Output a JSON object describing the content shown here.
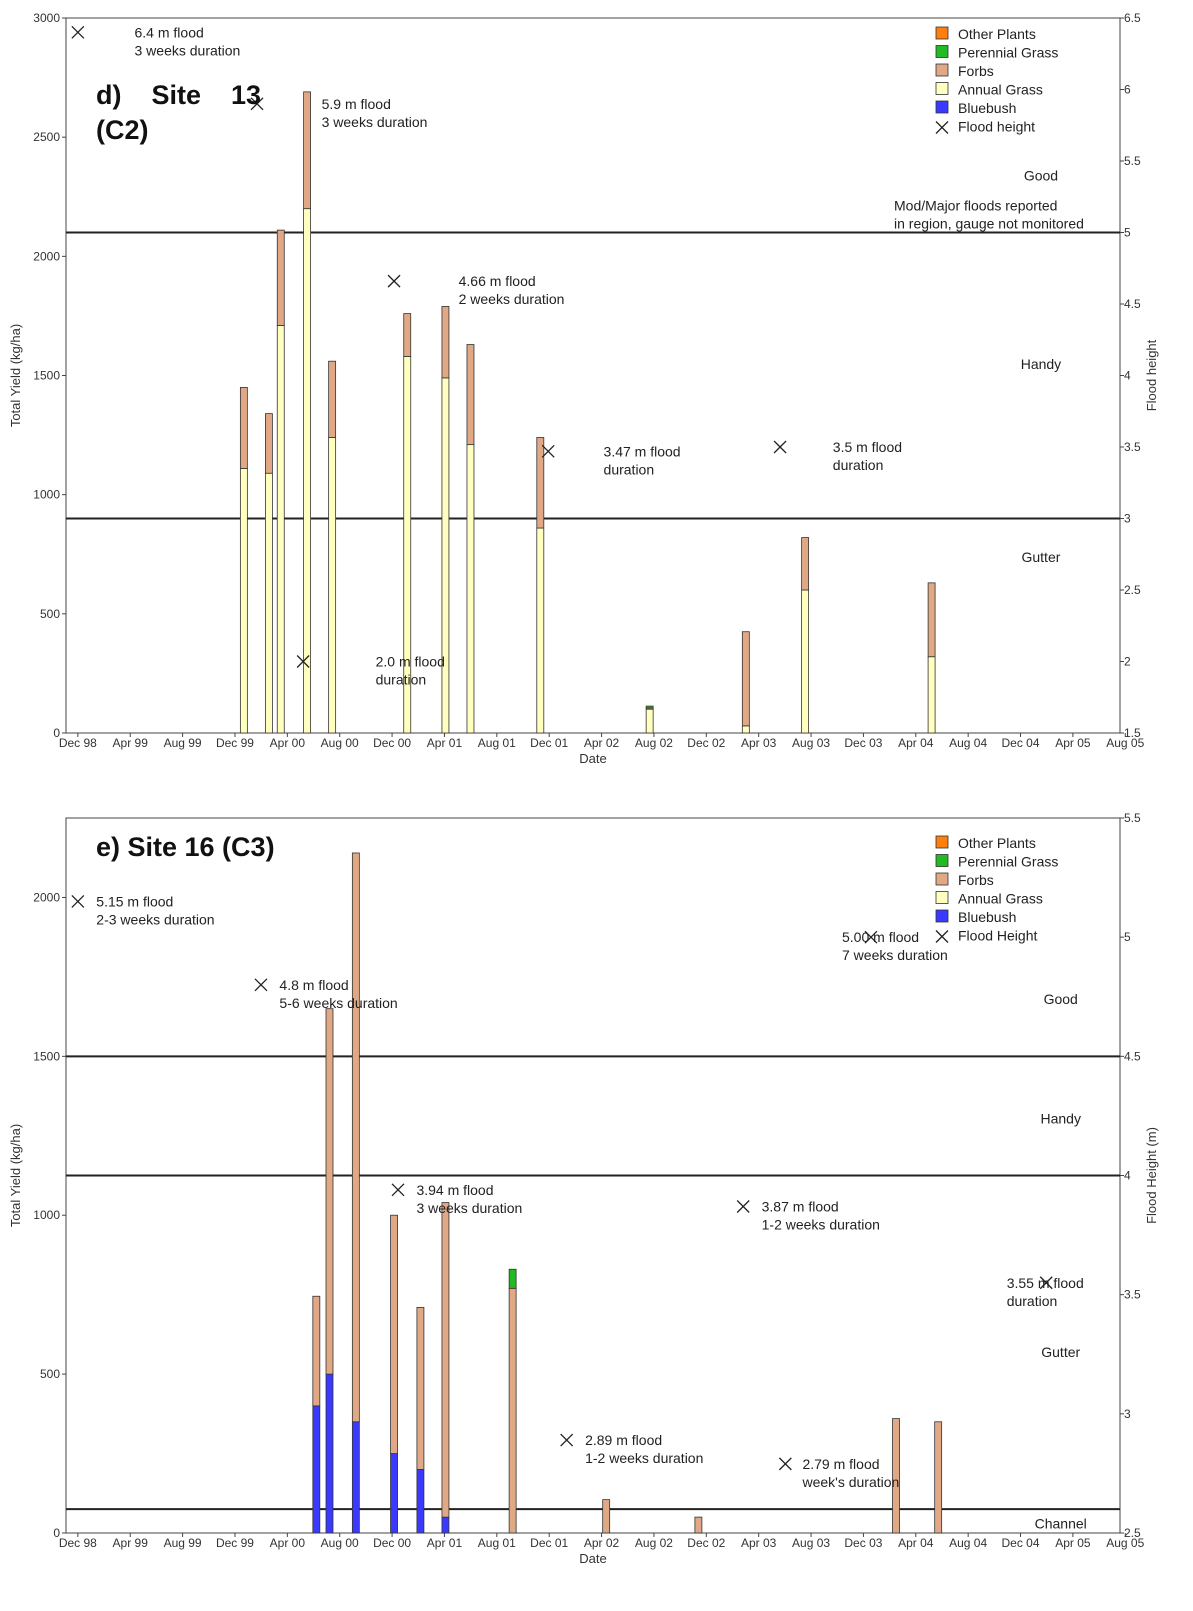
{
  "chart_data": [
    {
      "type": "bar",
      "stacked": true,
      "title": "d) Site 13 (C2)",
      "title_lines": [
        "d)    Site    13",
        "(C2)"
      ],
      "xlabel": "Date",
      "ylabel": "Total Yield (kg/ha)",
      "y2label": "Flood height",
      "x_ticks": [
        "Dec 98",
        "Apr 99",
        "Aug 99",
        "Dec 99",
        "Apr 00",
        "Aug 00",
        "Dec 00",
        "Apr 01",
        "Aug 01",
        "Dec 01",
        "Apr 02",
        "Aug 02",
        "Dec 02",
        "Apr 03",
        "Aug 03",
        "Dec 03",
        "Apr 04",
        "Aug 04",
        "Dec 04",
        "Apr 05",
        "Aug 05"
      ],
      "ylim": [
        0,
        3000
      ],
      "y_ticks": [
        0,
        500,
        1000,
        1500,
        2000,
        2500,
        3000
      ],
      "y2lim": [
        1.5,
        6.5
      ],
      "y2_ticks": [
        "1.5",
        "2",
        "2.5",
        "3",
        "3.5",
        "4",
        "4.5",
        "5",
        "5.5",
        "6",
        "6.5"
      ],
      "legend": {
        "position": "top-right",
        "entries": [
          {
            "name": "Other Plants",
            "color": "#ff7f0e",
            "kind": "box"
          },
          {
            "name": "Perennial Grass",
            "color": "#22bb22",
            "kind": "box"
          },
          {
            "name": "Forbs",
            "color": "#e0a885",
            "kind": "box"
          },
          {
            "name": "Annual Grass",
            "color": "#ffffc0",
            "kind": "box"
          },
          {
            "name": "Bluebush",
            "color": "#3a3aff",
            "kind": "box"
          },
          {
            "name": "Flood height",
            "kind": "cross"
          }
        ]
      },
      "series_order": [
        "Bluebush",
        "Annual Grass",
        "Forbs",
        "Perennial Grass",
        "Other Plants"
      ],
      "bars": [
        {
          "x": 13.5,
          "values": {
            "Annual Grass": 1110,
            "Forbs": 340
          }
        },
        {
          "x": 15.4,
          "values": {
            "Annual Grass": 1090,
            "Forbs": 250
          }
        },
        {
          "x": 16.3,
          "values": {
            "Annual Grass": 1710,
            "Forbs": 400
          }
        },
        {
          "x": 18.3,
          "values": {
            "Annual Grass": 2200,
            "Forbs": 490
          }
        },
        {
          "x": 20.2,
          "values": {
            "Annual Grass": 1240,
            "Forbs": 320
          }
        },
        {
          "x": 25.9,
          "values": {
            "Annual Grass": 1580,
            "Forbs": 180
          }
        },
        {
          "x": 28.8,
          "values": {
            "Annual Grass": 1490,
            "Forbs": 300
          }
        },
        {
          "x": 30.7,
          "values": {
            "Annual Grass": 1210,
            "Forbs": 420
          }
        },
        {
          "x": 36.0,
          "values": {
            "Annual Grass": 860,
            "Forbs": 380
          }
        },
        {
          "x": 44.3,
          "values": {
            "Annual Grass": 100,
            "Forbs": 5,
            "Perennial Grass": 8
          }
        },
        {
          "x": 51.6,
          "values": {
            "Annual Grass": 30,
            "Forbs": 395
          }
        },
        {
          "x": 56.1,
          "values": {
            "Annual Grass": 600,
            "Forbs": 220
          }
        },
        {
          "x": 65.7,
          "values": {
            "Annual Grass": 320,
            "Forbs": 310
          }
        }
      ],
      "flood_points": [
        {
          "x": 0.9,
          "height": 6.4
        },
        {
          "x": 14.5,
          "height": 5.9
        },
        {
          "x": 18.0,
          "height": 2.0
        },
        {
          "x": 24.9,
          "height": 4.66
        },
        {
          "x": 36.6,
          "height": 3.47
        },
        {
          "x": 54.2,
          "height": 3.5
        }
      ],
      "hlines": [
        {
          "y2": 5,
          "label": [
            "Mod/Major floods reported",
            "in region, gauge not monitored"
          ]
        },
        {
          "y2": 3
        }
      ],
      "annotations": [
        {
          "text": [
            "6.4 m flood",
            "3 weeks duration"
          ],
          "x": 5.2,
          "y2": 6.4
        },
        {
          "text": [
            "5.9 m flood",
            "3 weeks duration"
          ],
          "x": 19.4,
          "y2": 5.9
        },
        {
          "text": [
            "4.66 m flood",
            "2 weeks duration"
          ],
          "x": 29.8,
          "y2": 4.66
        },
        {
          "text": [
            "2.0 m flood",
            "duration"
          ],
          "x": 23.5,
          "y2": 2.0
        },
        {
          "text": [
            "3.47 m flood",
            "duration"
          ],
          "x": 40.8,
          "y2": 3.47
        },
        {
          "text": [
            "3.5 m flood",
            "duration"
          ],
          "x": 58.2,
          "y2": 3.5
        }
      ],
      "zones": [
        {
          "label": "Good",
          "x": 74,
          "y2": 5.4
        },
        {
          "label": "Handy",
          "x": 74,
          "y2": 4.08
        },
        {
          "label": "Gutter",
          "x": 74,
          "y2": 2.73
        }
      ]
    },
    {
      "type": "bar",
      "stacked": true,
      "title": "e) Site 16 (C3)",
      "title_lines": [
        "e) Site 16 (C3)"
      ],
      "xlabel": "Date",
      "ylabel": "Total Yield (kg/ha)",
      "y2label": "Flood Height (m)",
      "x_ticks": [
        "Dec 98",
        "Apr 99",
        "Aug 99",
        "Dec 99",
        "Apr 00",
        "Aug 00",
        "Dec 00",
        "Apr 01",
        "Aug 01",
        "Dec 01",
        "Apr 02",
        "Aug 02",
        "Dec 02",
        "Apr 03",
        "Aug 03",
        "Dec 03",
        "Apr 04",
        "Aug 04",
        "Dec 04",
        "Apr 05",
        "Aug 05"
      ],
      "ylim": [
        0,
        2250
      ],
      "y_ticks": [
        0,
        500,
        1000,
        1500,
        2000
      ],
      "y2lim": [
        2.5,
        5.5
      ],
      "y2_ticks": [
        "2.5",
        "3",
        "3.5",
        "4",
        "4.5",
        "5",
        "5.5"
      ],
      "legend": {
        "position": "top-right",
        "entries": [
          {
            "name": "Other Plants",
            "color": "#ff7f0e",
            "kind": "box"
          },
          {
            "name": "Perennial Grass",
            "color": "#22bb22",
            "kind": "box"
          },
          {
            "name": "Forbs",
            "color": "#e0a885",
            "kind": "box"
          },
          {
            "name": "Annual Grass",
            "color": "#ffffc0",
            "kind": "box"
          },
          {
            "name": "Bluebush",
            "color": "#3a3aff",
            "kind": "box"
          },
          {
            "name": "Flood Height",
            "kind": "cross"
          }
        ]
      },
      "series_order": [
        "Bluebush",
        "Annual Grass",
        "Forbs",
        "Perennial Grass",
        "Other Plants"
      ],
      "bars": [
        {
          "x": 19.0,
          "values": {
            "Bluebush": 400,
            "Forbs": 345
          }
        },
        {
          "x": 20.0,
          "values": {
            "Bluebush": 500,
            "Forbs": 1150
          }
        },
        {
          "x": 22.0,
          "values": {
            "Bluebush": 350,
            "Forbs": 1790
          }
        },
        {
          "x": 24.9,
          "values": {
            "Bluebush": 250,
            "Forbs": 750
          }
        },
        {
          "x": 26.9,
          "values": {
            "Bluebush": 200,
            "Forbs": 510
          }
        },
        {
          "x": 28.8,
          "values": {
            "Bluebush": 50,
            "Forbs": 990
          }
        },
        {
          "x": 33.9,
          "values": {
            "Forbs": 770,
            "Perennial Grass": 60
          }
        },
        {
          "x": 41.0,
          "values": {
            "Forbs": 105
          }
        },
        {
          "x": 48.0,
          "values": {
            "Forbs": 50
          }
        },
        {
          "x": 63.0,
          "values": {
            "Forbs": 360
          }
        },
        {
          "x": 66.2,
          "values": {
            "Forbs": 350
          }
        }
      ],
      "flood_points": [
        {
          "x": 0.9,
          "height": 5.15
        },
        {
          "x": 14.8,
          "height": 4.8
        },
        {
          "x": 25.2,
          "height": 3.94
        },
        {
          "x": 38.0,
          "height": 2.89
        },
        {
          "x": 51.4,
          "height": 3.87
        },
        {
          "x": 54.6,
          "height": 2.79
        },
        {
          "x": 61.1,
          "height": 5.0
        },
        {
          "x": 74.4,
          "height": 3.55
        }
      ],
      "hlines": [
        {
          "y2": 4.5
        },
        {
          "y2": 4.0
        },
        {
          "y2": 2.6
        }
      ],
      "annotations": [
        {
          "text": [
            "5.15 m flood",
            "2-3 weeks duration"
          ],
          "x": 2.3,
          "y2": 5.15
        },
        {
          "text": [
            "4.8 m flood",
            "5-6 weeks duration"
          ],
          "x": 16.2,
          "y2": 4.8
        },
        {
          "text": [
            "3.94 m flood",
            "3 weeks duration"
          ],
          "x": 26.6,
          "y2": 3.94
        },
        {
          "text": [
            "2.89 m flood",
            "1-2 weeks duration"
          ],
          "x": 39.4,
          "y2": 2.89
        },
        {
          "text": [
            "3.87 m flood",
            "1-2 weeks duration"
          ],
          "x": 52.8,
          "y2": 3.87
        },
        {
          "text": [
            "2.79 m flood",
            "week's duration"
          ],
          "x": 55.9,
          "y2": 2.79
        },
        {
          "text": [
            "5.00 m flood",
            "7 weeks duration"
          ],
          "x": 58.9,
          "y2": 5.0
        },
        {
          "text": [
            "3.55 m flood",
            "duration"
          ],
          "x": 71.4,
          "y2": 3.55
        }
      ],
      "zones": [
        {
          "label": "Good",
          "x": 75.5,
          "y2": 4.74
        },
        {
          "label": "Handy",
          "x": 75.5,
          "y2": 4.24
        },
        {
          "label": "Gutter",
          "x": 75.5,
          "y2": 3.26
        },
        {
          "label": "Channel",
          "x": 75.5,
          "y2": 2.54
        }
      ]
    }
  ]
}
